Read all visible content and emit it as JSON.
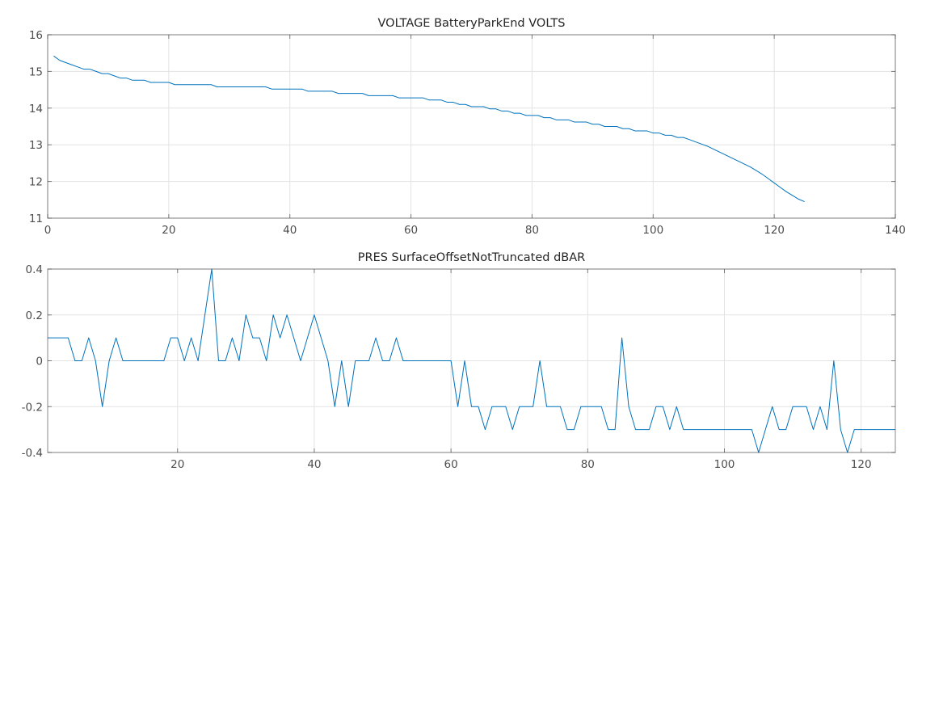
{
  "chart_data": [
    {
      "type": "line",
      "title": "VOLTAGE BatteryParkEnd VOLTS",
      "xlabel": "",
      "ylabel": "",
      "xlim": [
        0,
        140
      ],
      "ylim": [
        11,
        16
      ],
      "xticks": [
        0,
        20,
        40,
        60,
        80,
        100,
        120,
        140
      ],
      "xtick_labels": [
        "0",
        "20",
        "40",
        "60",
        "80",
        "100",
        "120",
        "140"
      ],
      "yticks": [
        11,
        12,
        13,
        14,
        15,
        16
      ],
      "ytick_labels": [
        "11",
        "12",
        "13",
        "14",
        "15",
        "16"
      ],
      "grid": true,
      "color": "#0072BD",
      "series": [
        {
          "x": [
            1,
            2,
            3,
            4,
            5,
            6,
            7,
            8,
            9,
            10,
            11,
            12,
            13,
            14,
            15,
            16,
            17,
            18,
            19,
            20,
            21,
            22,
            23,
            24,
            25,
            26,
            27,
            28,
            29,
            30,
            31,
            32,
            33,
            34,
            35,
            36,
            37,
            38,
            39,
            40,
            41,
            42,
            43,
            44,
            45,
            46,
            47,
            48,
            49,
            50,
            51,
            52,
            53,
            54,
            55,
            56,
            57,
            58,
            59,
            60,
            61,
            62,
            63,
            64,
            65,
            66,
            67,
            68,
            69,
            70,
            71,
            72,
            73,
            74,
            75,
            76,
            77,
            78,
            79,
            80,
            81,
            82,
            83,
            84,
            85,
            86,
            87,
            88,
            89,
            90,
            91,
            92,
            93,
            94,
            95,
            96,
            97,
            98,
            99,
            100,
            101,
            102,
            103,
            104,
            105,
            106,
            107,
            108,
            109,
            110,
            111,
            112,
            113,
            114,
            115,
            116,
            117,
            118,
            119,
            120,
            121,
            122,
            123,
            124,
            125
          ],
          "y": [
            15.42,
            15.3,
            15.24,
            15.18,
            15.12,
            15.06,
            15.06,
            15.0,
            14.94,
            14.94,
            14.88,
            14.82,
            14.82,
            14.76,
            14.76,
            14.76,
            14.7,
            14.7,
            14.7,
            14.7,
            14.64,
            14.64,
            14.64,
            14.64,
            14.64,
            14.64,
            14.64,
            14.58,
            14.58,
            14.58,
            14.58,
            14.58,
            14.58,
            14.58,
            14.58,
            14.58,
            14.52,
            14.52,
            14.52,
            14.52,
            14.52,
            14.52,
            14.46,
            14.46,
            14.46,
            14.46,
            14.46,
            14.4,
            14.4,
            14.4,
            14.4,
            14.4,
            14.34,
            14.34,
            14.34,
            14.34,
            14.34,
            14.28,
            14.28,
            14.28,
            14.28,
            14.28,
            14.22,
            14.22,
            14.22,
            14.16,
            14.16,
            14.1,
            14.1,
            14.04,
            14.04,
            14.04,
            13.98,
            13.98,
            13.92,
            13.92,
            13.86,
            13.86,
            13.8,
            13.8,
            13.8,
            13.74,
            13.74,
            13.68,
            13.68,
            13.68,
            13.62,
            13.62,
            13.62,
            13.56,
            13.56,
            13.5,
            13.5,
            13.5,
            13.44,
            13.44,
            13.38,
            13.38,
            13.38,
            13.32,
            13.32,
            13.26,
            13.26,
            13.2,
            13.2,
            13.14,
            13.08,
            13.02,
            12.96,
            12.88,
            12.8,
            12.72,
            12.64,
            12.56,
            12.48,
            12.4,
            12.3,
            12.2,
            12.08,
            11.96,
            11.84,
            11.72,
            11.62,
            11.52,
            11.45
          ]
        }
      ]
    },
    {
      "type": "line",
      "title": "PRES SurfaceOffsetNotTruncated dBAR",
      "xlabel": "",
      "ylabel": "",
      "xlim": [
        1,
        125
      ],
      "ylim": [
        -0.4,
        0.4
      ],
      "xticks": [
        20,
        40,
        60,
        80,
        100,
        120
      ],
      "xtick_labels": [
        "20",
        "40",
        "60",
        "80",
        "100",
        "120"
      ],
      "yticks": [
        -0.4,
        -0.2,
        0,
        0.2,
        0.4
      ],
      "ytick_labels": [
        "-0.4",
        "-0.2",
        "0",
        "0.2",
        "0.4"
      ],
      "grid": true,
      "color": "#0072BD",
      "series": [
        {
          "x": [
            1,
            2,
            3,
            4,
            5,
            6,
            7,
            8,
            9,
            10,
            11,
            12,
            13,
            14,
            15,
            16,
            17,
            18,
            19,
            20,
            21,
            22,
            23,
            24,
            25,
            26,
            27,
            28,
            29,
            30,
            31,
            32,
            33,
            34,
            35,
            36,
            37,
            38,
            39,
            40,
            41,
            42,
            43,
            44,
            45,
            46,
            47,
            48,
            49,
            50,
            51,
            52,
            53,
            54,
            55,
            56,
            57,
            58,
            59,
            60,
            61,
            62,
            63,
            64,
            65,
            66,
            67,
            68,
            69,
            70,
            71,
            72,
            73,
            74,
            75,
            76,
            77,
            78,
            79,
            80,
            81,
            82,
            83,
            84,
            85,
            86,
            87,
            88,
            89,
            90,
            91,
            92,
            93,
            94,
            95,
            96,
            97,
            98,
            99,
            100,
            101,
            102,
            103,
            104,
            105,
            106,
            107,
            108,
            109,
            110,
            111,
            112,
            113,
            114,
            115,
            116,
            117,
            118,
            119,
            120,
            121,
            122,
            123,
            124,
            125
          ],
          "y": [
            0.1,
            0.1,
            0.1,
            0.1,
            0.0,
            0.0,
            0.1,
            0.0,
            -0.2,
            0.0,
            0.1,
            0.0,
            0.0,
            0.0,
            0.0,
            0.0,
            0.0,
            0.0,
            0.1,
            0.1,
            0.0,
            0.1,
            0.0,
            0.2,
            0.4,
            0.0,
            0.0,
            0.1,
            0.0,
            0.2,
            0.1,
            0.1,
            0.0,
            0.2,
            0.1,
            0.2,
            0.1,
            0.0,
            0.1,
            0.2,
            0.1,
            0.0,
            -0.2,
            0.0,
            -0.2,
            0.0,
            0.0,
            0.0,
            0.1,
            0.0,
            0.0,
            0.1,
            0.0,
            0.0,
            0.0,
            0.0,
            0.0,
            0.0,
            0.0,
            0.0,
            -0.2,
            0.0,
            -0.2,
            -0.2,
            -0.3,
            -0.2,
            -0.2,
            -0.2,
            -0.3,
            -0.2,
            -0.2,
            -0.2,
            0.0,
            -0.2,
            -0.2,
            -0.2,
            -0.3,
            -0.3,
            -0.2,
            -0.2,
            -0.2,
            -0.2,
            -0.3,
            -0.3,
            0.1,
            -0.2,
            -0.3,
            -0.3,
            -0.3,
            -0.2,
            -0.2,
            -0.3,
            -0.2,
            -0.3,
            -0.3,
            -0.3,
            -0.3,
            -0.3,
            -0.3,
            -0.3,
            -0.3,
            -0.3,
            -0.3,
            -0.3,
            -0.4,
            -0.3,
            -0.2,
            -0.3,
            -0.3,
            -0.2,
            -0.2,
            -0.2,
            -0.3,
            -0.2,
            -0.3,
            0.0,
            -0.3,
            -0.4,
            -0.3,
            -0.3,
            -0.3,
            -0.3,
            -0.3,
            -0.3,
            -0.3
          ]
        }
      ]
    }
  ]
}
